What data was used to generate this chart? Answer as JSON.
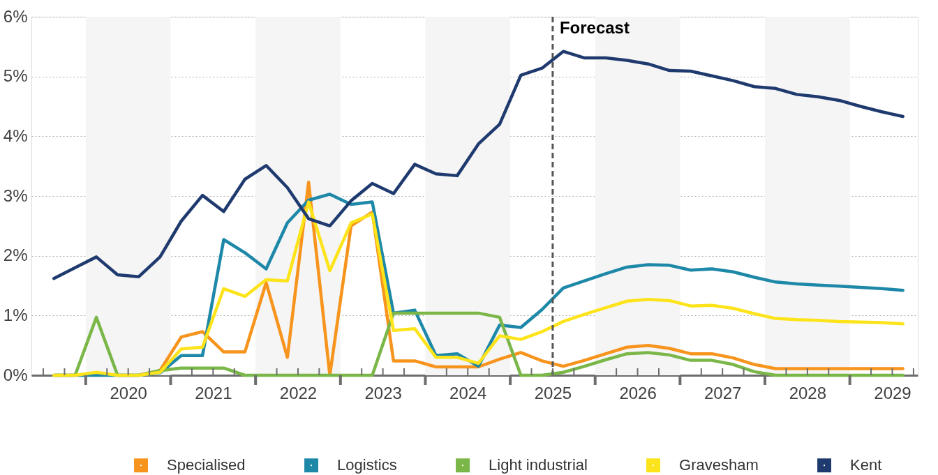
{
  "chart_data": {
    "type": "line",
    "x": [
      2019.625,
      2019.875,
      2020.125,
      2020.375,
      2020.625,
      2020.875,
      2021.125,
      2021.375,
      2021.625,
      2021.875,
      2022.125,
      2022.375,
      2022.625,
      2022.875,
      2023.125,
      2023.375,
      2023.625,
      2023.875,
      2024.125,
      2024.375,
      2024.625,
      2024.875,
      2025.125,
      2025.375,
      2025.625,
      2025.875,
      2026.125,
      2026.375,
      2026.625,
      2026.875,
      2027.125,
      2027.375,
      2027.625,
      2027.875,
      2028.125,
      2028.375,
      2028.625,
      2028.875,
      2029.125,
      2029.375,
      2029.625
    ],
    "series": [
      {
        "name": "Specialised",
        "color": "#f7941d",
        "values": [
          null,
          null,
          null,
          null,
          0,
          0.08,
          0.64,
          0.73,
          0.39,
          0.39,
          1.55,
          0.3,
          3.23,
          0,
          2.5,
          2.73,
          0.24,
          0.24,
          0.14,
          0.14,
          0.14,
          0.27,
          0.38,
          0.24,
          0.15,
          0.25,
          0.36,
          0.47,
          0.5,
          0.45,
          0.36,
          0.36,
          0.29,
          0.18,
          0.11,
          0.11,
          0.11,
          0.11,
          0.11,
          0.11,
          0.11
        ]
      },
      {
        "name": "Logistics",
        "color": "#1e88a8",
        "values": [
          0,
          0,
          0,
          0,
          0,
          0.04,
          0.33,
          0.33,
          2.27,
          2.05,
          1.78,
          2.55,
          2.93,
          3.03,
          2.86,
          2.9,
          1.04,
          1.09,
          0.33,
          0.36,
          0.15,
          0.84,
          0.8,
          1.1,
          1.46,
          1.58,
          1.7,
          1.81,
          1.85,
          1.84,
          1.76,
          1.78,
          1.73,
          1.64,
          1.56,
          1.53,
          1.51,
          1.49,
          1.47,
          1.45,
          1.42
        ]
      },
      {
        "name": "Light industrial",
        "color": "#7ab648",
        "values": [
          0,
          0,
          0.97,
          0,
          0,
          0.08,
          0.12,
          0.12,
          0.12,
          0,
          0,
          0,
          0,
          0,
          0,
          0,
          1.04,
          1.04,
          1.04,
          1.04,
          1.04,
          0.97,
          0,
          0,
          0.05,
          0.15,
          0.26,
          0.36,
          0.38,
          0.34,
          0.25,
          0.25,
          0.18,
          0.06,
          0,
          0,
          0,
          0,
          0,
          0,
          0
        ]
      },
      {
        "name": "Gravesham",
        "color": "#fde31a",
        "values": [
          0,
          0,
          0.05,
          0,
          0,
          0.05,
          0.44,
          0.47,
          1.45,
          1.32,
          1.6,
          1.58,
          2.9,
          1.75,
          2.55,
          2.7,
          0.75,
          0.78,
          0.3,
          0.3,
          0.2,
          0.66,
          0.6,
          0.73,
          0.9,
          1.02,
          1.13,
          1.24,
          1.27,
          1.25,
          1.16,
          1.17,
          1.12,
          1.03,
          0.95,
          0.93,
          0.92,
          0.9,
          0.89,
          0.88,
          0.86
        ]
      },
      {
        "name": "Kent",
        "color": "#1f3a6e",
        "values": [
          1.62,
          1.8,
          1.98,
          1.68,
          1.65,
          1.98,
          2.58,
          3.01,
          2.74,
          3.28,
          3.51,
          3.14,
          2.62,
          2.5,
          2.92,
          3.21,
          3.04,
          3.53,
          3.37,
          3.34,
          3.87,
          4.2,
          5.02,
          5.14,
          5.42,
          5.31,
          5.31,
          5.27,
          5.21,
          5.1,
          5.09,
          5.01,
          4.93,
          4.83,
          4.8,
          4.7,
          4.66,
          4.6,
          4.5,
          4.41,
          4.33
        ]
      }
    ],
    "xlim": [
      2019.36,
      2029.8
    ],
    "xticks": [
      {
        "value": 2019.5,
        "label": null
      },
      {
        "value": 2019.75,
        "label": null
      },
      {
        "value": 2020,
        "label": null
      },
      {
        "value": 2020.25,
        "label": null
      },
      {
        "value": 2020.5,
        "label": "2020"
      },
      {
        "value": 2020.75,
        "label": null
      },
      {
        "value": 2021,
        "label": null
      },
      {
        "value": 2021.25,
        "label": null
      },
      {
        "value": 2021.5,
        "label": "2021"
      },
      {
        "value": 2021.75,
        "label": null
      },
      {
        "value": 2022,
        "label": null
      },
      {
        "value": 2022.25,
        "label": null
      },
      {
        "value": 2022.5,
        "label": "2022"
      },
      {
        "value": 2022.75,
        "label": null
      },
      {
        "value": 2023,
        "label": null
      },
      {
        "value": 2023.25,
        "label": null
      },
      {
        "value": 2023.5,
        "label": "2023"
      },
      {
        "value": 2023.75,
        "label": null
      },
      {
        "value": 2024,
        "label": null
      },
      {
        "value": 2024.25,
        "label": null
      },
      {
        "value": 2024.5,
        "label": "2024"
      },
      {
        "value": 2024.75,
        "label": null
      },
      {
        "value": 2025,
        "label": null
      },
      {
        "value": 2025.25,
        "label": null
      },
      {
        "value": 2025.5,
        "label": "2025"
      },
      {
        "value": 2025.75,
        "label": null
      },
      {
        "value": 2026,
        "label": null
      },
      {
        "value": 2026.25,
        "label": null
      },
      {
        "value": 2026.5,
        "label": "2026"
      },
      {
        "value": 2026.75,
        "label": null
      },
      {
        "value": 2027,
        "label": null
      },
      {
        "value": 2027.25,
        "label": null
      },
      {
        "value": 2027.5,
        "label": "2027"
      },
      {
        "value": 2027.75,
        "label": null
      },
      {
        "value": 2028,
        "label": null
      },
      {
        "value": 2028.25,
        "label": null
      },
      {
        "value": 2028.5,
        "label": "2028"
      },
      {
        "value": 2028.75,
        "label": null
      },
      {
        "value": 2029,
        "label": null
      },
      {
        "value": 2029.25,
        "label": null
      },
      {
        "value": 2029.5,
        "label": "2029"
      },
      {
        "value": 2029.75,
        "label": null
      }
    ],
    "ylim": [
      0,
      6
    ],
    "yticks": [
      {
        "value": 0,
        "label": "0%"
      },
      {
        "value": 1,
        "label": "1%"
      },
      {
        "value": 2,
        "label": "2%"
      },
      {
        "value": 3,
        "label": "3%"
      },
      {
        "value": 4,
        "label": "4%"
      },
      {
        "value": 5,
        "label": "5%"
      },
      {
        "value": 6,
        "label": "6%"
      }
    ],
    "ref_lines": [
      {
        "axis": "x",
        "value": 2025.5,
        "label": "Forecast",
        "color": "#555555",
        "line_style": "dashed"
      }
    ],
    "bands": [
      {
        "axis": "x",
        "from": 2020,
        "to": 2021,
        "label": null,
        "color": "#f5f5f5"
      },
      {
        "axis": "x",
        "from": 2022,
        "to": 2023,
        "label": null,
        "color": "#f5f5f5"
      },
      {
        "axis": "x",
        "from": 2024,
        "to": 2025,
        "label": null,
        "color": "#f5f5f5"
      },
      {
        "axis": "x",
        "from": 2026,
        "to": 2027,
        "label": null,
        "color": "#f5f5f5"
      },
      {
        "axis": "x",
        "from": 2028,
        "to": 2029,
        "label": null,
        "color": "#f5f5f5"
      }
    ],
    "grid": "y",
    "legend": "bottom",
    "marker": "none",
    "line_style": "solid"
  }
}
